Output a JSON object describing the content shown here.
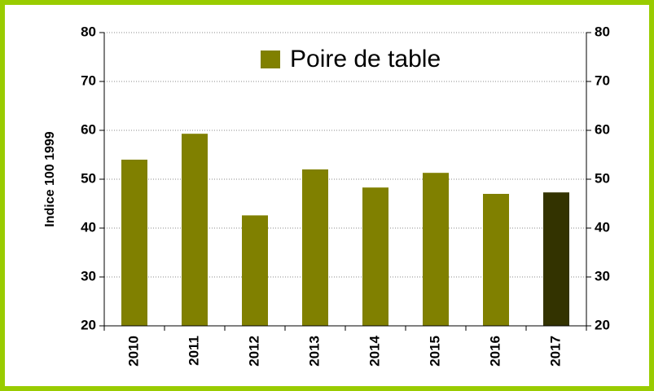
{
  "chart_data": {
    "type": "bar",
    "y_label": "Indice 100 1999",
    "categories": [
      "2010",
      "2011",
      "2012",
      "2013",
      "2014",
      "2015",
      "2016",
      "2017"
    ],
    "series": [
      {
        "name": "Poire de table",
        "color": "#808000",
        "colors": [
          "#808000",
          "#808000",
          "#808000",
          "#808000",
          "#808000",
          "#808000",
          "#808000",
          "#333300"
        ],
        "values": [
          54,
          59.3,
          42.6,
          52,
          48.3,
          51.3,
          47,
          47.3
        ]
      }
    ],
    "ylim": [
      20,
      80
    ],
    "yticks": [
      20,
      30,
      40,
      50,
      60,
      70,
      80
    ],
    "y2lim": [
      20,
      80
    ],
    "y2ticks": [
      20,
      30,
      40,
      50,
      60,
      70,
      80
    ],
    "grid": true,
    "legend": "top"
  }
}
